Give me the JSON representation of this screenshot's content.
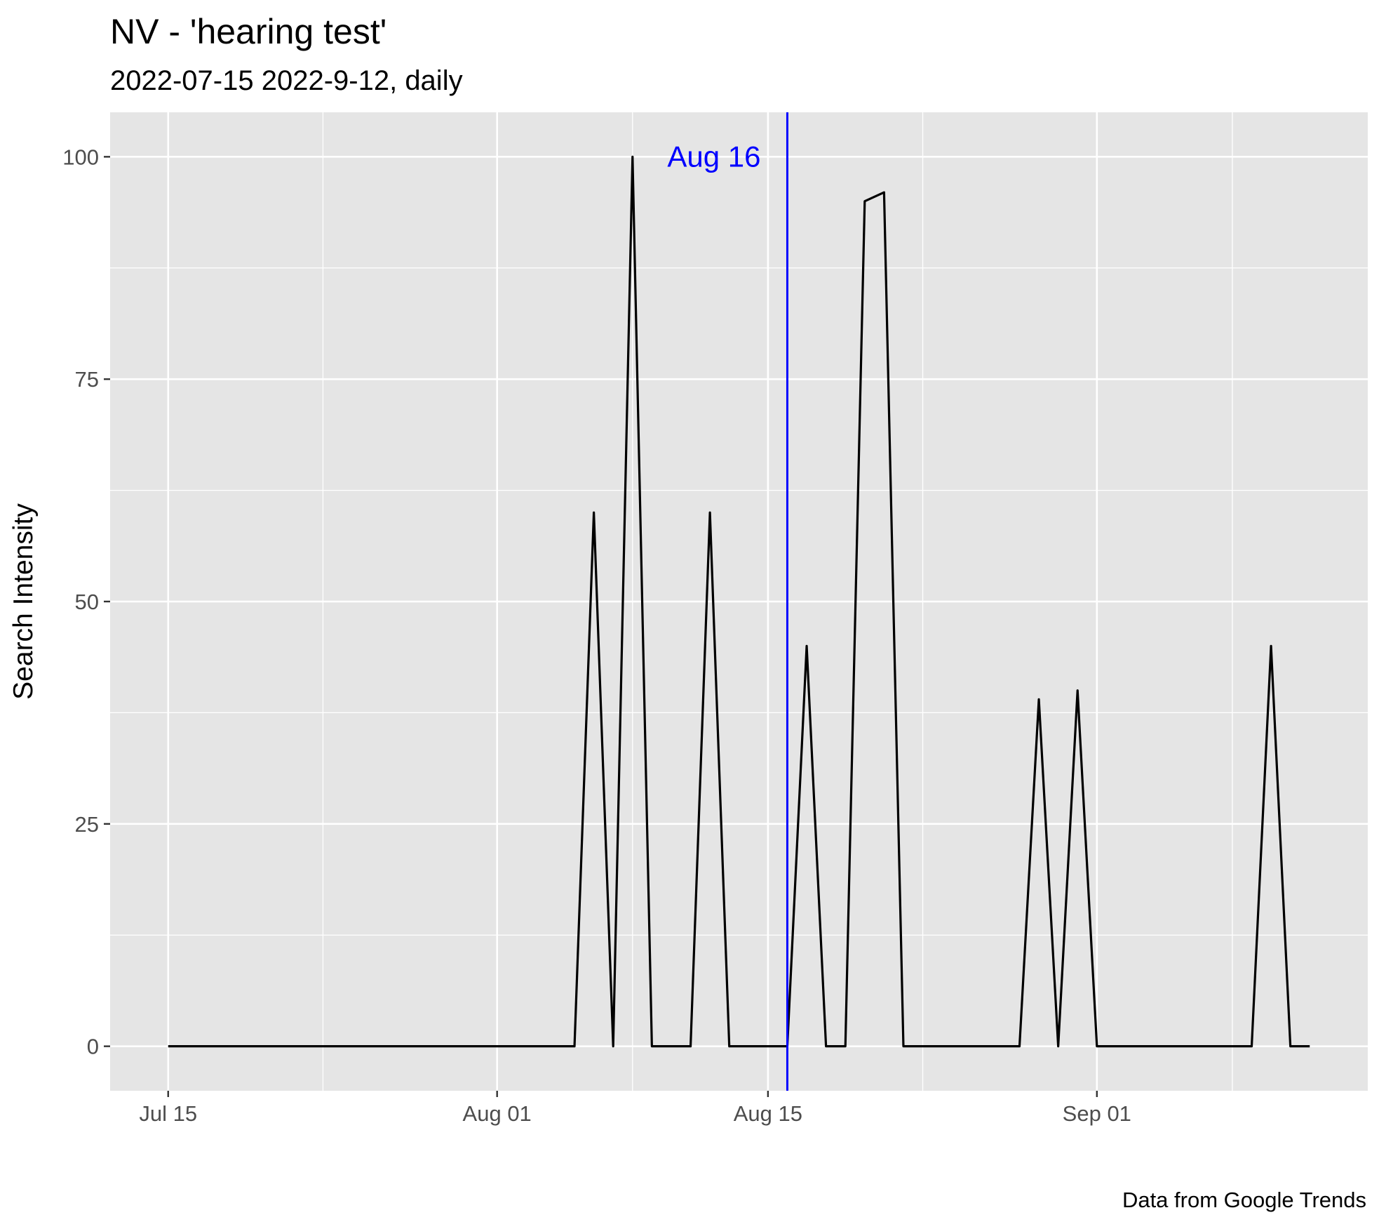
{
  "chart_data": {
    "type": "line",
    "title": "NV  - 'hearing test'",
    "subtitle": "2022-07-15 2022-9-12, daily",
    "xlabel": "",
    "ylabel": "Search Intensity",
    "caption": "Data from Google Trends",
    "x_range": [
      "2022-07-12",
      "2022-09-15"
    ],
    "ylim": [
      -5,
      105
    ],
    "x_ticks": [
      {
        "date": "2022-07-15",
        "label": "Jul 15"
      },
      {
        "date": "2022-08-01",
        "label": "Aug 01"
      },
      {
        "date": "2022-08-15",
        "label": "Aug 15"
      },
      {
        "date": "2022-09-01",
        "label": "Sep 01"
      }
    ],
    "x_minor_ticks": [
      "2022-07-23",
      "2022-08-08",
      "2022-08-23",
      "2022-09-08"
    ],
    "y_ticks": [
      0,
      25,
      50,
      75,
      100
    ],
    "y_minor_ticks": [
      12.5,
      37.5,
      62.5,
      87.5
    ],
    "grid": true,
    "line_color": "#000000",
    "series": [
      {
        "x": [
          "2022-07-15",
          "2022-07-16",
          "2022-07-17",
          "2022-07-18",
          "2022-07-19",
          "2022-07-20",
          "2022-07-21",
          "2022-07-22",
          "2022-07-23",
          "2022-07-24",
          "2022-07-25",
          "2022-07-26",
          "2022-07-27",
          "2022-07-28",
          "2022-07-29",
          "2022-07-30",
          "2022-07-31",
          "2022-08-01",
          "2022-08-02",
          "2022-08-03",
          "2022-08-04",
          "2022-08-05",
          "2022-08-06",
          "2022-08-07",
          "2022-08-08",
          "2022-08-09",
          "2022-08-10",
          "2022-08-11",
          "2022-08-12",
          "2022-08-13",
          "2022-08-14",
          "2022-08-15",
          "2022-08-16",
          "2022-08-17",
          "2022-08-18",
          "2022-08-19",
          "2022-08-20",
          "2022-08-21",
          "2022-08-22",
          "2022-08-23",
          "2022-08-24",
          "2022-08-25",
          "2022-08-26",
          "2022-08-27",
          "2022-08-28",
          "2022-08-29",
          "2022-08-30",
          "2022-08-31",
          "2022-09-01",
          "2022-09-02",
          "2022-09-03",
          "2022-09-04",
          "2022-09-05",
          "2022-09-06",
          "2022-09-07",
          "2022-09-08",
          "2022-09-09",
          "2022-09-10",
          "2022-09-11",
          "2022-09-12"
        ],
        "values": [
          0,
          0,
          0,
          0,
          0,
          0,
          0,
          0,
          0,
          0,
          0,
          0,
          0,
          0,
          0,
          0,
          0,
          0,
          0,
          0,
          0,
          0,
          60,
          0,
          100,
          0,
          0,
          0,
          60,
          0,
          0,
          0,
          0,
          45,
          0,
          0,
          95,
          96,
          0,
          0,
          0,
          0,
          0,
          0,
          0,
          39,
          0,
          40,
          0,
          0,
          0,
          0,
          0,
          0,
          0,
          0,
          0,
          45,
          0,
          0
        ]
      }
    ],
    "vline": {
      "date": "2022-08-16",
      "label": "Aug 16",
      "color": "#0000ff"
    }
  }
}
